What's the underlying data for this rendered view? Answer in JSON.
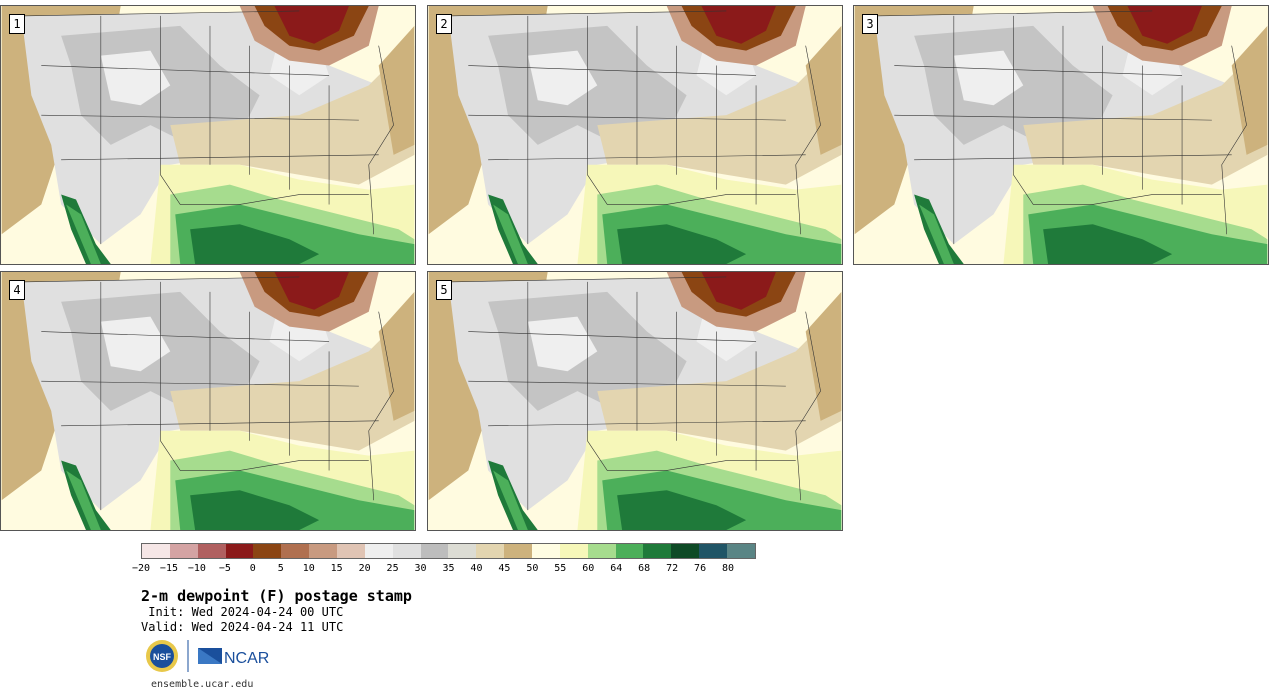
{
  "panels": [
    {
      "label": "1"
    },
    {
      "label": "2"
    },
    {
      "label": "3"
    },
    {
      "label": "4"
    },
    {
      "label": "5"
    }
  ],
  "colorbar": {
    "colors": [
      "#f5e6e6",
      "#d4a3a3",
      "#b06060",
      "#8b1a1a",
      "#8b4513",
      "#b07050",
      "#c89a80",
      "#e0c4b4",
      "#efefef",
      "#e0e0e0",
      "#bdbdbd",
      "#dcdcd4",
      "#e3d5b0",
      "#cdb27d",
      "#fffde3",
      "#f6f7b9",
      "#a6dc8e",
      "#4caf5a",
      "#1f7a3a",
      "#0e4a26",
      "#205566",
      "#5a8585"
    ],
    "tick_labels": [
      "−20",
      "−15",
      "−10",
      "−5",
      "0",
      "5",
      "10",
      "15",
      "20",
      "25",
      "30",
      "35",
      "40",
      "45",
      "50",
      "55",
      "60",
      "64",
      "68",
      "72",
      "76",
      "80"
    ]
  },
  "header": {
    "title": "2-m dewpoint (F) postage stamp",
    "init": " Init: Wed 2024-04-24 00 UTC",
    "valid": "Valid: Wed 2024-04-24 11 UTC"
  },
  "logos": {
    "nsf": "NSF",
    "ncar": "NCAR"
  },
  "footer": {
    "site": "ensemble.ucar.edu"
  }
}
